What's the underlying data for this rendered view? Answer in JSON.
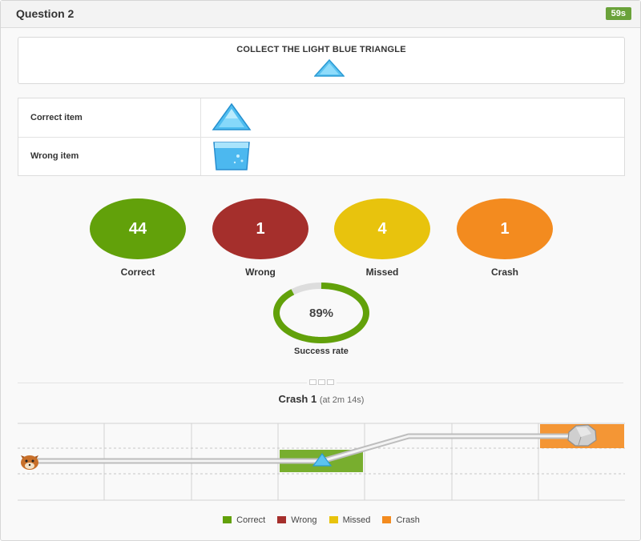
{
  "header": {
    "title": "Question 2",
    "timer": "59s"
  },
  "instruction": {
    "text": "COLLECT THE LIGHT BLUE TRIANGLE",
    "icon": "light-blue-triangle"
  },
  "items": {
    "correct_label": "Correct item",
    "correct_icon": "light-blue-triangle",
    "wrong_label": "Wrong item",
    "wrong_icon": "light-blue-cup"
  },
  "stats": {
    "correct": {
      "value": "44",
      "label": "Correct",
      "color": "#62a10a"
    },
    "wrong": {
      "value": "1",
      "label": "Wrong",
      "color": "#a52f2c"
    },
    "missed": {
      "value": "4",
      "label": "Missed",
      "color": "#e8c30d"
    },
    "crash": {
      "value": "1",
      "label": "Crash",
      "color": "#f38b1f"
    }
  },
  "success_rate": {
    "value": "89%",
    "fraction": 0.89,
    "label": "Success rate",
    "color": "#62a10a"
  },
  "crash": {
    "title": "Crash 1",
    "subtitle": "(at 2m 14s)"
  },
  "legend": [
    {
      "label": "Correct",
      "color": "#62a10a"
    },
    {
      "label": "Wrong",
      "color": "#a52f2c"
    },
    {
      "label": "Missed",
      "color": "#e8c30d"
    },
    {
      "label": "Crash",
      "color": "#f38b1f"
    }
  ]
}
